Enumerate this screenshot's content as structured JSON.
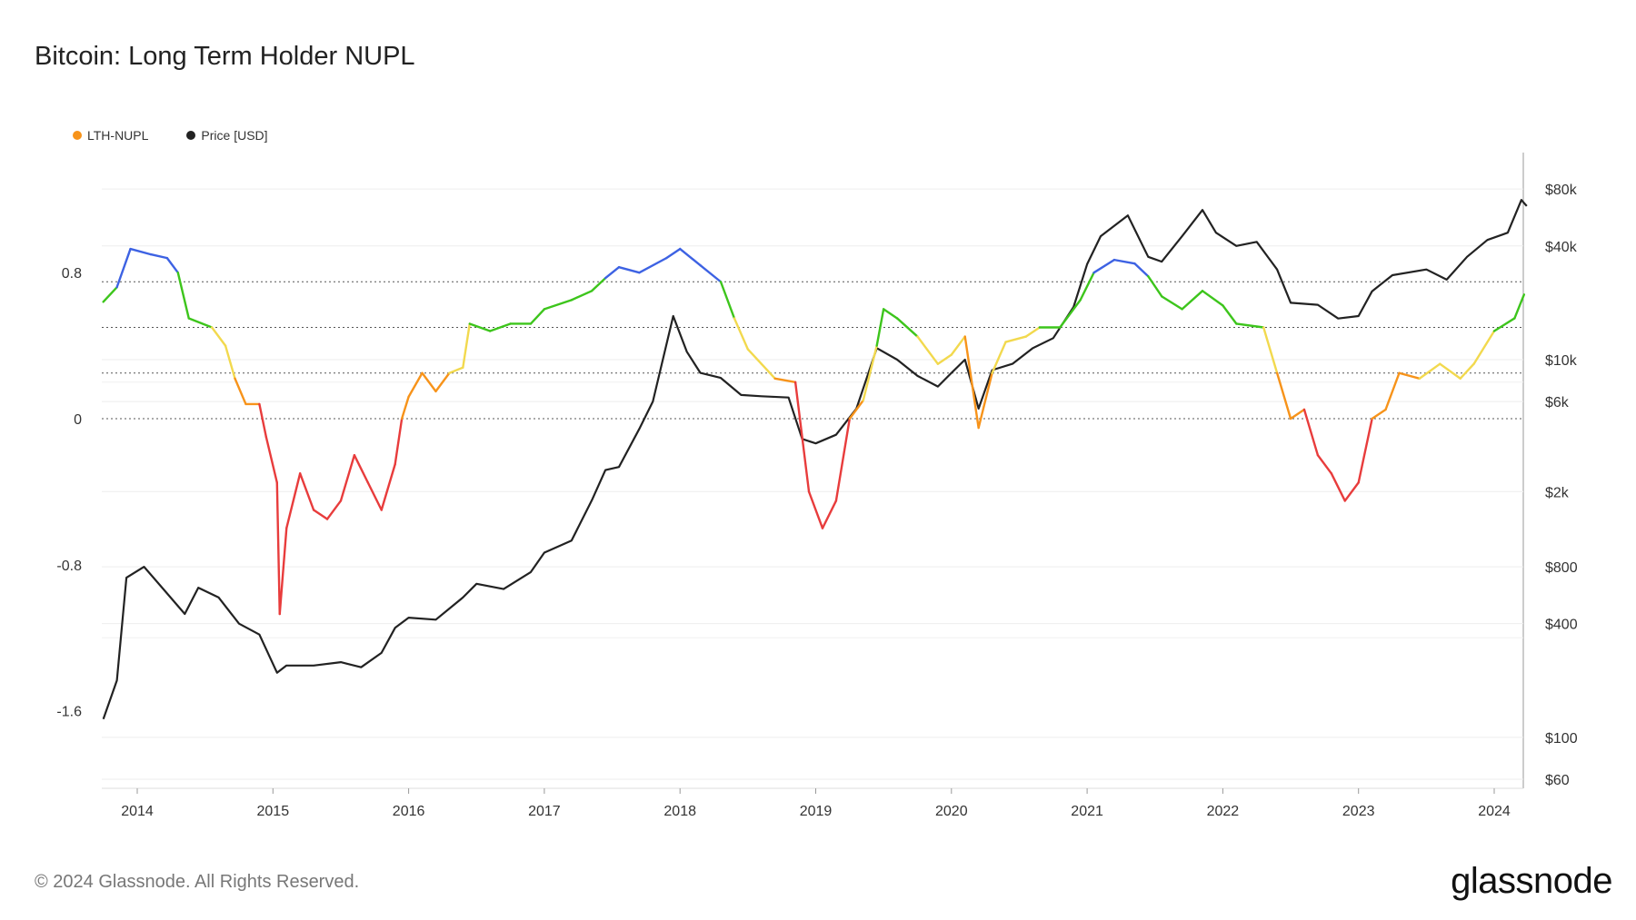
{
  "title": "Bitcoin: Long Term Holder NUPL",
  "footer": "© 2024 Glassnode. All Rights Reserved.",
  "brand": "glassnode",
  "legend": [
    {
      "label": "LTH-NUPL",
      "color": "#f7931a"
    },
    {
      "label": "Price [USD]",
      "color": "#222222"
    }
  ],
  "chart_data": {
    "type": "line",
    "title": "Bitcoin: Long Term Holder NUPL",
    "x_tick_labels": [
      "2014",
      "2015",
      "2016",
      "2017",
      "2018",
      "2019",
      "2020",
      "2021",
      "2022",
      "2023",
      "2024"
    ],
    "left_axis": {
      "ticks": [
        0.8,
        0,
        -0.8,
        -1.6
      ],
      "tick_labels": [
        "0.8",
        "0",
        "-0.8",
        "-1.6"
      ],
      "range": [
        -1.6,
        0.95
      ]
    },
    "right_axis": {
      "scale": "log",
      "ticks": [
        80000,
        40000,
        10000,
        6000,
        2000,
        800,
        400,
        100,
        60
      ],
      "tick_labels": [
        "$80k",
        "$40k",
        "$10k",
        "$6k",
        "$2k",
        "$800",
        "$400",
        "$100",
        "$60"
      ],
      "range": [
        60,
        100000
      ]
    },
    "reference_lines": [
      0.75,
      0.5,
      0.25,
      0
    ],
    "zone_colors": {
      "capitulation": "#e83c3c",
      "hope_fear": "#f7931a",
      "optimism_anxiety": "#f2d94e",
      "belief_denial": "#3dc51c",
      "euphoria_greed": "#3d62e3"
    },
    "series": [
      {
        "name": "LTH-NUPL",
        "color_by_value": true,
        "points": [
          [
            2013.75,
            0.64
          ],
          [
            2013.85,
            0.72
          ],
          [
            2013.95,
            0.93
          ],
          [
            2014.1,
            0.9
          ],
          [
            2014.22,
            0.88
          ],
          [
            2014.3,
            0.8
          ],
          [
            2014.38,
            0.55
          ],
          [
            2014.55,
            0.5
          ],
          [
            2014.65,
            0.4
          ],
          [
            2014.72,
            0.22
          ],
          [
            2014.8,
            0.08
          ],
          [
            2014.9,
            0.08
          ],
          [
            2014.95,
            -0.1
          ],
          [
            2015.03,
            -0.35
          ],
          [
            2015.05,
            -1.07
          ],
          [
            2015.1,
            -0.6
          ],
          [
            2015.2,
            -0.3
          ],
          [
            2015.3,
            -0.5
          ],
          [
            2015.4,
            -0.55
          ],
          [
            2015.5,
            -0.45
          ],
          [
            2015.6,
            -0.2
          ],
          [
            2015.7,
            -0.35
          ],
          [
            2015.8,
            -0.5
          ],
          [
            2015.9,
            -0.25
          ],
          [
            2015.95,
            0.0
          ],
          [
            2016.0,
            0.12
          ],
          [
            2016.1,
            0.25
          ],
          [
            2016.2,
            0.15
          ],
          [
            2016.3,
            0.25
          ],
          [
            2016.4,
            0.28
          ],
          [
            2016.45,
            0.52
          ],
          [
            2016.6,
            0.48
          ],
          [
            2016.75,
            0.52
          ],
          [
            2016.9,
            0.52
          ],
          [
            2017.0,
            0.6
          ],
          [
            2017.2,
            0.65
          ],
          [
            2017.35,
            0.7
          ],
          [
            2017.45,
            0.77
          ],
          [
            2017.55,
            0.83
          ],
          [
            2017.7,
            0.8
          ],
          [
            2017.9,
            0.88
          ],
          [
            2018.0,
            0.93
          ],
          [
            2018.15,
            0.84
          ],
          [
            2018.3,
            0.75
          ],
          [
            2018.4,
            0.55
          ],
          [
            2018.5,
            0.38
          ],
          [
            2018.6,
            0.3
          ],
          [
            2018.7,
            0.22
          ],
          [
            2018.85,
            0.2
          ],
          [
            2018.95,
            -0.4
          ],
          [
            2019.05,
            -0.6
          ],
          [
            2019.15,
            -0.45
          ],
          [
            2019.25,
            0.0
          ],
          [
            2019.35,
            0.1
          ],
          [
            2019.45,
            0.4
          ],
          [
            2019.5,
            0.6
          ],
          [
            2019.6,
            0.55
          ],
          [
            2019.75,
            0.45
          ],
          [
            2019.9,
            0.3
          ],
          [
            2020.0,
            0.35
          ],
          [
            2020.1,
            0.45
          ],
          [
            2020.2,
            -0.05
          ],
          [
            2020.3,
            0.25
          ],
          [
            2020.4,
            0.42
          ],
          [
            2020.55,
            0.45
          ],
          [
            2020.65,
            0.5
          ],
          [
            2020.8,
            0.5
          ],
          [
            2020.95,
            0.65
          ],
          [
            2021.05,
            0.8
          ],
          [
            2021.2,
            0.87
          ],
          [
            2021.35,
            0.85
          ],
          [
            2021.45,
            0.78
          ],
          [
            2021.55,
            0.67
          ],
          [
            2021.7,
            0.6
          ],
          [
            2021.85,
            0.7
          ],
          [
            2022.0,
            0.62
          ],
          [
            2022.1,
            0.52
          ],
          [
            2022.3,
            0.5
          ],
          [
            2022.4,
            0.25
          ],
          [
            2022.5,
            0.0
          ],
          [
            2022.6,
            0.05
          ],
          [
            2022.7,
            -0.2
          ],
          [
            2022.8,
            -0.3
          ],
          [
            2022.9,
            -0.45
          ],
          [
            2023.0,
            -0.35
          ],
          [
            2023.1,
            0.0
          ],
          [
            2023.2,
            0.05
          ],
          [
            2023.3,
            0.25
          ],
          [
            2023.45,
            0.22
          ],
          [
            2023.6,
            0.3
          ],
          [
            2023.75,
            0.22
          ],
          [
            2023.85,
            0.3
          ],
          [
            2024.0,
            0.48
          ],
          [
            2024.15,
            0.55
          ],
          [
            2024.22,
            0.68
          ]
        ]
      },
      {
        "name": "Price [USD]",
        "color": "#222222",
        "points": [
          [
            2013.75,
            125
          ],
          [
            2013.85,
            200
          ],
          [
            2013.92,
            700
          ],
          [
            2014.05,
            800
          ],
          [
            2014.2,
            600
          ],
          [
            2014.35,
            450
          ],
          [
            2014.45,
            620
          ],
          [
            2014.6,
            550
          ],
          [
            2014.75,
            400
          ],
          [
            2014.9,
            350
          ],
          [
            2015.03,
            220
          ],
          [
            2015.1,
            240
          ],
          [
            2015.3,
            240
          ],
          [
            2015.5,
            250
          ],
          [
            2015.65,
            235
          ],
          [
            2015.8,
            280
          ],
          [
            2015.9,
            380
          ],
          [
            2016.0,
            430
          ],
          [
            2016.2,
            420
          ],
          [
            2016.4,
            550
          ],
          [
            2016.5,
            650
          ],
          [
            2016.7,
            610
          ],
          [
            2016.9,
            750
          ],
          [
            2017.0,
            950
          ],
          [
            2017.2,
            1100
          ],
          [
            2017.35,
            1800
          ],
          [
            2017.45,
            2600
          ],
          [
            2017.55,
            2700
          ],
          [
            2017.7,
            4300
          ],
          [
            2017.8,
            6000
          ],
          [
            2017.95,
            17000
          ],
          [
            2018.05,
            11000
          ],
          [
            2018.15,
            8500
          ],
          [
            2018.3,
            8000
          ],
          [
            2018.45,
            6500
          ],
          [
            2018.6,
            6400
          ],
          [
            2018.8,
            6300
          ],
          [
            2018.9,
            3800
          ],
          [
            2019.0,
            3600
          ],
          [
            2019.15,
            4000
          ],
          [
            2019.3,
            5500
          ],
          [
            2019.45,
            11500
          ],
          [
            2019.6,
            10000
          ],
          [
            2019.75,
            8200
          ],
          [
            2019.9,
            7200
          ],
          [
            2020.0,
            8500
          ],
          [
            2020.1,
            10000
          ],
          [
            2020.2,
            5500
          ],
          [
            2020.3,
            8800
          ],
          [
            2020.45,
            9500
          ],
          [
            2020.6,
            11500
          ],
          [
            2020.75,
            13000
          ],
          [
            2020.9,
            19000
          ],
          [
            2021.0,
            32000
          ],
          [
            2021.1,
            45000
          ],
          [
            2021.3,
            58000
          ],
          [
            2021.45,
            35000
          ],
          [
            2021.55,
            33000
          ],
          [
            2021.7,
            45000
          ],
          [
            2021.85,
            62000
          ],
          [
            2021.95,
            47000
          ],
          [
            2022.1,
            40000
          ],
          [
            2022.25,
            42000
          ],
          [
            2022.4,
            30000
          ],
          [
            2022.5,
            20000
          ],
          [
            2022.7,
            19500
          ],
          [
            2022.85,
            16500
          ],
          [
            2023.0,
            17000
          ],
          [
            2023.1,
            23000
          ],
          [
            2023.25,
            28000
          ],
          [
            2023.5,
            30000
          ],
          [
            2023.65,
            26500
          ],
          [
            2023.8,
            35000
          ],
          [
            2023.95,
            43000
          ],
          [
            2024.1,
            47000
          ],
          [
            2024.2,
            70000
          ],
          [
            2024.24,
            65000
          ]
        ]
      }
    ]
  }
}
